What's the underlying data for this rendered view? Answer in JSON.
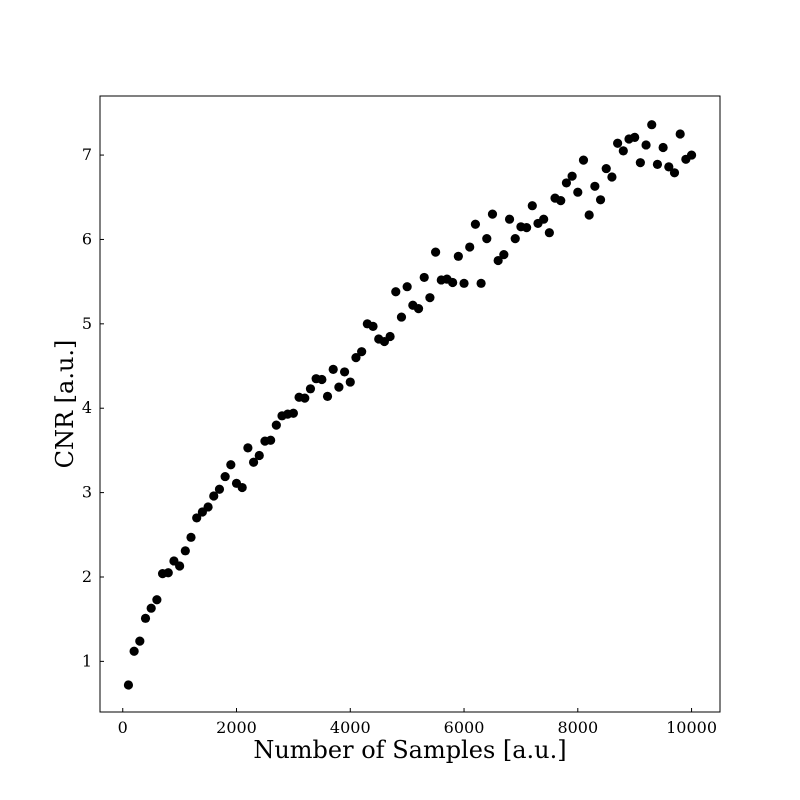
{
  "chart_data": {
    "type": "scatter",
    "xlabel": "Number of Samples [a.u.]",
    "ylabel": "CNR [a.u.]",
    "xlim": [
      -400,
      10500
    ],
    "ylim": [
      0.4,
      7.7
    ],
    "xticks": [
      0,
      2000,
      4000,
      6000,
      8000,
      10000
    ],
    "yticks": [
      1,
      2,
      3,
      4,
      5,
      6,
      7
    ],
    "marker_color": "#000000",
    "grid": false,
    "legend": "none",
    "series": [
      {
        "x": [
          100,
          200,
          300,
          400,
          500,
          600,
          700,
          800,
          900,
          1000,
          1100,
          1200,
          1300,
          1400,
          1500,
          1600,
          1700,
          1800,
          1900,
          2000,
          2100,
          2200,
          2300,
          2400,
          2500,
          2600,
          2700,
          2800,
          2900,
          3000,
          3100,
          3200,
          3300,
          3400,
          3500,
          3600,
          3700,
          3800,
          3900,
          4000,
          4100,
          4200,
          4300,
          4400,
          4500,
          4600,
          4700,
          4800,
          4900,
          5000,
          5100,
          5200,
          5300,
          5400,
          5500,
          5600,
          5700,
          5800,
          5900,
          6000,
          6100,
          6200,
          6300,
          6400,
          6500,
          6600,
          6700,
          6800,
          6900,
          7000,
          7100,
          7200,
          7300,
          7400,
          7500,
          7600,
          7700,
          7800,
          7900,
          8000,
          8100,
          8200,
          8300,
          8400,
          8500,
          8600,
          8700,
          8800,
          8900,
          9000,
          9100,
          9200,
          9300,
          9400,
          9500,
          9600,
          9700,
          9800,
          9900,
          10000
        ],
        "y": [
          0.72,
          1.12,
          1.24,
          1.51,
          1.63,
          1.73,
          2.04,
          2.05,
          2.19,
          2.13,
          2.31,
          2.47,
          2.7,
          2.77,
          2.83,
          2.96,
          3.04,
          3.19,
          3.33,
          3.11,
          3.06,
          3.53,
          3.36,
          3.44,
          3.61,
          3.62,
          3.8,
          3.91,
          3.93,
          3.94,
          4.13,
          4.12,
          4.23,
          4.35,
          4.34,
          4.14,
          4.46,
          4.25,
          4.43,
          4.31,
          4.6,
          4.67,
          5.0,
          4.97,
          4.82,
          4.79,
          4.85,
          5.38,
          5.08,
          5.44,
          5.22,
          5.18,
          5.55,
          5.31,
          5.85,
          5.52,
          5.53,
          5.49,
          5.8,
          5.48,
          5.91,
          6.18,
          5.48,
          6.01,
          6.3,
          5.75,
          5.82,
          6.24,
          6.01,
          6.15,
          6.14,
          6.4,
          6.19,
          6.24,
          6.08,
          6.49,
          6.46,
          6.67,
          6.75,
          6.56,
          6.94,
          6.29,
          6.63,
          6.47,
          6.84,
          6.74,
          7.14,
          7.05,
          7.19,
          7.21,
          6.91,
          7.12,
          7.36,
          6.89,
          7.09,
          6.86,
          6.79,
          7.25,
          6.95,
          7.0
        ]
      }
    ]
  }
}
